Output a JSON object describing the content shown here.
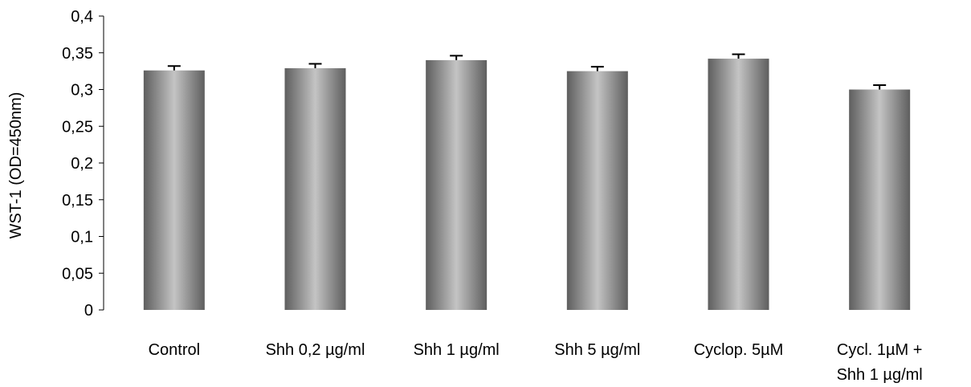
{
  "chart_data": {
    "type": "bar",
    "title": "",
    "xlabel": "",
    "ylabel": "WST-1 (OD=450nm)",
    "ylim": [
      0,
      0.4
    ],
    "y_ticks": [
      "0",
      "0,05",
      "0,1",
      "0,15",
      "0,2",
      "0,25",
      "0,3",
      "0,35",
      "0,4"
    ],
    "categories": [
      [
        "Control"
      ],
      [
        "Shh 0,2 µg/ml"
      ],
      [
        "Shh 1 µg/ml"
      ],
      [
        "Shh 5 µg/ml"
      ],
      [
        "Cyclop. 5µM"
      ],
      [
        "Cycl. 1µM +",
        "Shh 1 µg/ml"
      ]
    ],
    "values": [
      0.326,
      0.329,
      0.34,
      0.325,
      0.342,
      0.3
    ],
    "errors": [
      0.006,
      0.006,
      0.006,
      0.006,
      0.006,
      0.006
    ],
    "grid": false,
    "legend": "none",
    "bar_color": "#8c8c8c"
  }
}
